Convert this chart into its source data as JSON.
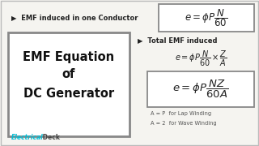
{
  "bg_color": "#f5f4f0",
  "white": "#ffffff",
  "outer_border_color": "#bbbbbb",
  "box_border_color": "#888888",
  "title_lines": [
    "EMF Equation",
    "of",
    "DC Generator"
  ],
  "title_color": "#111111",
  "bullet1_text": "▶  EMF induced in one Conductor",
  "bullet2_text": "▶  Total EMF induced",
  "formula1": "$e = \\phi P \\dfrac{N}{60}$",
  "formula2": "$e = \\phi P \\dfrac{N}{60} \\times \\dfrac{Z}{A}$",
  "formula3": "$e = \\phi P \\dfrac{NZ}{60A}$",
  "note1": "A = P  for Lap Winding",
  "note2": "A = 2  for Wave Winding",
  "brand_electrical": "Electrical",
  "brand_deck": " Deck",
  "brand_color_electrical": "#00bcd4",
  "brand_color_deck": "#444444",
  "text_color": "#222222",
  "note_color": "#555555"
}
